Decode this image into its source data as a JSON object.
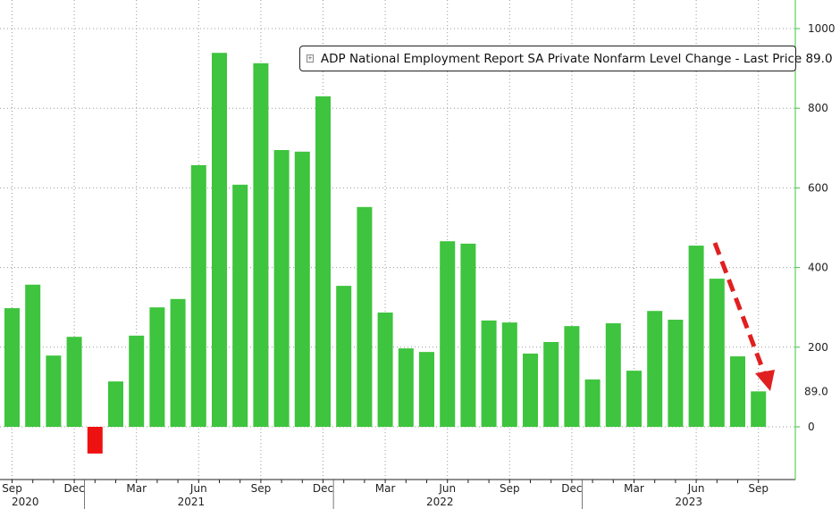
{
  "chart_data": {
    "type": "bar",
    "title": "ADP National Employment Report SA Private Nonfarm Level Change - Last Price 89.0",
    "legend": {
      "label": "ADP National Employment Report SA Private Nonfarm Level Change - Last Price 89.0",
      "placement": "top-right"
    },
    "categories": [
      "Sep 2020",
      "Oct 2020",
      "Nov 2020",
      "Dec 2020",
      "Jan 2021",
      "Feb 2021",
      "Mar 2021",
      "Apr 2021",
      "May 2021",
      "Jun 2021",
      "Jul 2021",
      "Aug 2021",
      "Sep 2021",
      "Oct 2021",
      "Nov 2021",
      "Dec 2021",
      "Jan 2022",
      "Feb 2022",
      "Mar 2022",
      "Apr 2022",
      "May 2022",
      "Jun 2022",
      "Jul 2022",
      "Aug 2022",
      "Sep 2022",
      "Oct 2022",
      "Nov 2022",
      "Dec 2022",
      "Jan 2023",
      "Feb 2023",
      "Mar 2023",
      "Apr 2023",
      "May 2023",
      "Jun 2023",
      "Jul 2023",
      "Aug 2023",
      "Sep 2023"
    ],
    "values": [
      298,
      357,
      179,
      226,
      -67,
      114,
      229,
      300,
      321,
      657,
      939,
      608,
      913,
      695,
      691,
      830,
      354,
      552,
      287,
      197,
      188,
      466,
      460,
      267,
      262,
      184,
      213,
      253,
      119,
      260,
      141,
      291,
      269,
      455,
      372,
      177,
      89
    ],
    "ylim": [
      -130,
      1050
    ],
    "yticks": [
      0,
      200,
      400,
      600,
      800,
      1000
    ],
    "ytick_labels": [
      "0",
      "200",
      "400",
      "600",
      "800",
      "1000"
    ],
    "x_month_labels": [
      {
        "i": 0,
        "t": "Sep"
      },
      {
        "i": 3,
        "t": "Dec"
      },
      {
        "i": 6,
        "t": "Mar"
      },
      {
        "i": 9,
        "t": "Jun"
      },
      {
        "i": 12,
        "t": "Sep"
      },
      {
        "i": 15,
        "t": "Dec"
      },
      {
        "i": 18,
        "t": "Mar"
      },
      {
        "i": 21,
        "t": "Jun"
      },
      {
        "i": 24,
        "t": "Sep"
      },
      {
        "i": 27,
        "t": "Dec"
      },
      {
        "i": 30,
        "t": "Mar"
      },
      {
        "i": 33,
        "t": "Jun"
      },
      {
        "i": 36,
        "t": "Sep"
      }
    ],
    "x_year_labels": [
      {
        "i": 1.5,
        "t": "2020"
      },
      {
        "i": 9.5,
        "t": "2021"
      },
      {
        "i": 21.5,
        "t": "2022"
      },
      {
        "i": 33.5,
        "t": "2023"
      }
    ],
    "last_price_label": "89.0",
    "colors": {
      "positive": "#3ec43e",
      "negative": "#ee1111",
      "axis": "#3ec43e",
      "arrow": "#e02020"
    },
    "grid": true
  }
}
